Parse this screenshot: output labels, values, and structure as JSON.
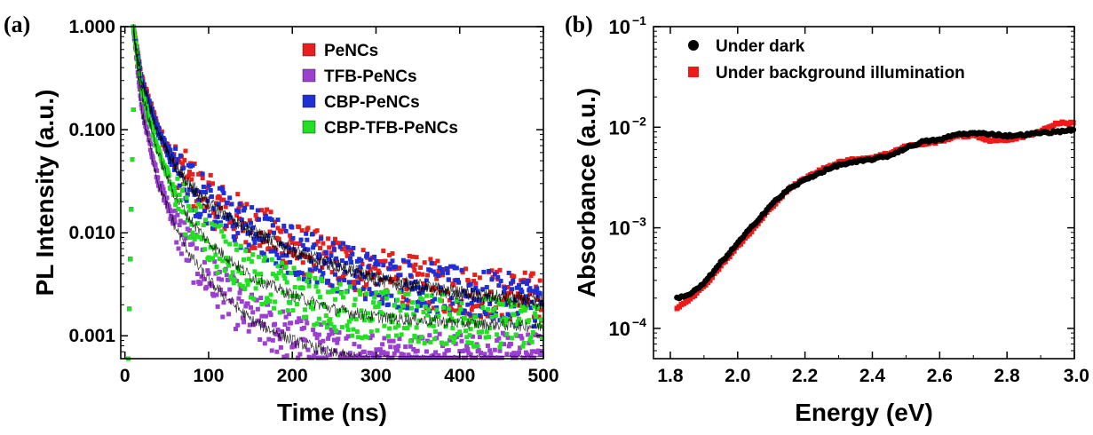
{
  "chart_data": [
    {
      "panel": "(a)",
      "type": "scatter",
      "xlabel": "Time (ns)",
      "ylabel": "PL Intensity (a.u.)",
      "xlim": [
        -5,
        500
      ],
      "ylim": [
        0.0006,
        1.0
      ],
      "y_scale": "log",
      "x_ticks": [
        0,
        100,
        200,
        300,
        400,
        500
      ],
      "x_tick_labels": [
        "0",
        "100",
        "200",
        "300",
        "400",
        "500"
      ],
      "y_ticks": [
        0.001,
        0.01,
        0.1,
        1.0
      ],
      "y_tick_labels": [
        "0.001",
        "0.010",
        "0.100",
        "1.000"
      ],
      "legend_position": "top-right",
      "peak_time": 10,
      "series": [
        {
          "name": "PeNCs",
          "color": "#e8201c",
          "marker": "square",
          "noise_floor": 0.0019,
          "x": [
            10,
            20,
            40,
            60,
            80,
            100,
            150,
            200,
            250,
            300,
            400,
            500
          ],
          "y": [
            1.0,
            0.32,
            0.1,
            0.047,
            0.03,
            0.021,
            0.0115,
            0.0073,
            0.0052,
            0.0039,
            0.0028,
            0.0023
          ]
        },
        {
          "name": "TFB-PeNCs",
          "color": "#9b3fd0",
          "marker": "square",
          "noise_floor": 0.0006,
          "x": [
            10,
            20,
            40,
            60,
            80,
            100,
            150,
            200,
            250,
            300,
            400,
            500
          ],
          "y": [
            1.0,
            0.16,
            0.032,
            0.012,
            0.006,
            0.0036,
            0.0015,
            0.00095,
            0.0007,
            0.0006,
            0.0006,
            0.0006
          ]
        },
        {
          "name": "CBP-PeNCs",
          "color": "#1e2fd6",
          "marker": "square",
          "noise_floor": 0.0018,
          "x": [
            10,
            20,
            40,
            60,
            80,
            100,
            150,
            200,
            250,
            300,
            400,
            500
          ],
          "y": [
            1.0,
            0.3,
            0.095,
            0.045,
            0.028,
            0.019,
            0.0105,
            0.0067,
            0.0049,
            0.0036,
            0.0026,
            0.0021
          ]
        },
        {
          "name": "CBP-TFB-PeNCs",
          "color": "#22e022",
          "marker": "square",
          "noise_floor": 0.0009,
          "x": [
            10,
            20,
            40,
            60,
            80,
            100,
            150,
            200,
            250,
            300,
            400,
            500
          ],
          "y": [
            1.0,
            0.24,
            0.06,
            0.024,
            0.0135,
            0.0085,
            0.004,
            0.0026,
            0.0019,
            0.0016,
            0.0014,
            0.0013
          ]
        }
      ],
      "fit_color": "#000000"
    },
    {
      "panel": "(b)",
      "type": "scatter",
      "xlabel": "Energy (eV)",
      "ylabel": "Absorbance (a.u.)",
      "xlim": [
        1.75,
        3.0
      ],
      "ylim": [
        5e-05,
        0.1
      ],
      "y_scale": "log",
      "x_ticks": [
        1.8,
        2.0,
        2.2,
        2.4,
        2.6,
        2.8,
        3.0
      ],
      "x_tick_labels": [
        "1.8",
        "2.0",
        "2.2",
        "2.4",
        "2.6",
        "2.8",
        "3.0"
      ],
      "y_ticks": [
        0.0001,
        0.001,
        0.01,
        0.1
      ],
      "y_tick_base": "10",
      "y_tick_exponents": [
        "−4",
        "−3",
        "−2",
        "−1"
      ],
      "legend_position": "top-left",
      "series": [
        {
          "name": "Under dark",
          "color": "#000000",
          "marker": "circle",
          "x": [
            1.82,
            1.86,
            1.9,
            1.95,
            2.0,
            2.05,
            2.1,
            2.15,
            2.2,
            2.25,
            2.3,
            2.35,
            2.4,
            2.45,
            2.5,
            2.55,
            2.6,
            2.65,
            2.7,
            2.75,
            2.8,
            2.85,
            2.9,
            2.95,
            3.0
          ],
          "y": [
            0.0002,
            0.00022,
            0.00028,
            0.00045,
            0.0007,
            0.0011,
            0.0017,
            0.0024,
            0.003,
            0.0036,
            0.0042,
            0.0045,
            0.0048,
            0.0052,
            0.0062,
            0.0072,
            0.0075,
            0.0085,
            0.0087,
            0.0086,
            0.0082,
            0.0084,
            0.0088,
            0.009,
            0.0095
          ]
        },
        {
          "name": "Under background illumination",
          "color": "#f01818",
          "marker": "square",
          "x": [
            1.82,
            1.86,
            1.9,
            1.95,
            2.0,
            2.05,
            2.1,
            2.15,
            2.2,
            2.25,
            2.3,
            2.35,
            2.4,
            2.45,
            2.5,
            2.55,
            2.6,
            2.65,
            2.7,
            2.75,
            2.8,
            2.85,
            2.9,
            2.95,
            3.0
          ],
          "y": [
            0.00016,
            0.0002,
            0.00026,
            0.00042,
            0.00065,
            0.001,
            0.0016,
            0.0024,
            0.0031,
            0.0038,
            0.0045,
            0.0048,
            0.005,
            0.0055,
            0.0065,
            0.0068,
            0.0072,
            0.0082,
            0.0082,
            0.0074,
            0.0075,
            0.008,
            0.0092,
            0.011,
            0.011
          ]
        }
      ]
    }
  ]
}
